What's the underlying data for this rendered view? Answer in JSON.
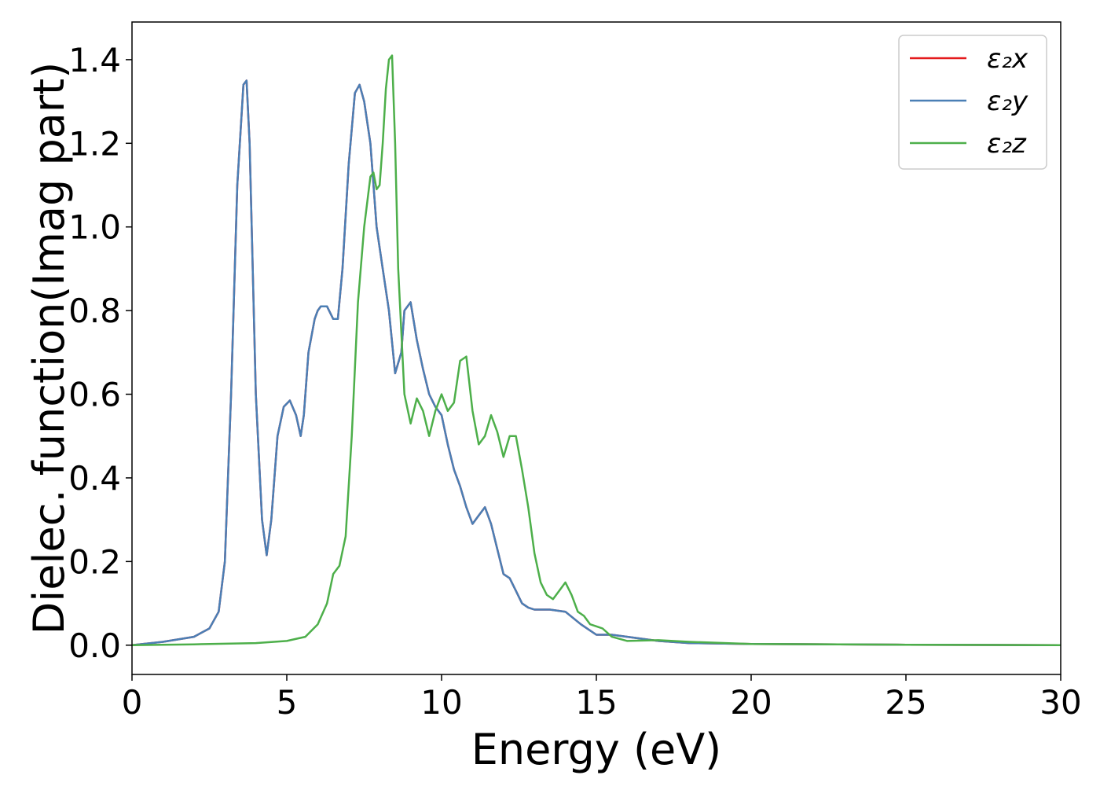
{
  "chart_data": {
    "type": "line",
    "xlabel": "Energy (eV)",
    "ylabel": "Dielec. function(Imag part)",
    "xlim": [
      0,
      30
    ],
    "ylim": [
      -0.07,
      1.49
    ],
    "xticks": [
      0,
      5,
      10,
      15,
      20,
      25,
      30
    ],
    "xtick_labels": [
      "0",
      "5",
      "10",
      "15",
      "20",
      "25",
      "30"
    ],
    "yticks": [
      0.0,
      0.2,
      0.4,
      0.6,
      0.8,
      1.0,
      1.2,
      1.4
    ],
    "ytick_labels": [
      "0.0",
      "0.2",
      "0.4",
      "0.6",
      "0.8",
      "1.0",
      "1.2",
      "1.4"
    ],
    "grid": false,
    "legend_position": "top-right",
    "series": [
      {
        "name": "ε₂x",
        "color": "#e41a1c",
        "x": [
          0,
          1,
          2,
          2.5,
          2.8,
          3.0,
          3.2,
          3.4,
          3.6,
          3.7,
          3.8,
          4.0,
          4.2,
          4.35,
          4.5,
          4.7,
          4.9,
          5.1,
          5.3,
          5.45,
          5.55,
          5.7,
          5.9,
          6.0,
          6.1,
          6.3,
          6.5,
          6.65,
          6.8,
          7.0,
          7.2,
          7.35,
          7.5,
          7.7,
          7.9,
          8.1,
          8.3,
          8.5,
          8.7,
          8.8,
          9.0,
          9.2,
          9.4,
          9.6,
          9.8,
          10.0,
          10.2,
          10.4,
          10.6,
          10.8,
          11.0,
          11.2,
          11.4,
          11.6,
          11.8,
          12.0,
          12.2,
          12.4,
          12.6,
          12.8,
          13.0,
          13.5,
          14.0,
          14.5,
          15.0,
          15.5,
          16.0,
          17.0,
          18.0,
          20.0,
          25.0,
          30.0
        ],
        "values": [
          0.0,
          0.008,
          0.02,
          0.04,
          0.08,
          0.2,
          0.6,
          1.1,
          1.34,
          1.35,
          1.2,
          0.6,
          0.3,
          0.215,
          0.3,
          0.5,
          0.57,
          0.585,
          0.55,
          0.5,
          0.55,
          0.7,
          0.78,
          0.8,
          0.81,
          0.81,
          0.78,
          0.78,
          0.9,
          1.15,
          1.32,
          1.34,
          1.3,
          1.2,
          1.0,
          0.9,
          0.8,
          0.65,
          0.7,
          0.8,
          0.82,
          0.73,
          0.66,
          0.6,
          0.57,
          0.55,
          0.48,
          0.42,
          0.38,
          0.33,
          0.29,
          0.31,
          0.33,
          0.29,
          0.23,
          0.17,
          0.16,
          0.13,
          0.1,
          0.09,
          0.085,
          0.085,
          0.08,
          0.05,
          0.025,
          0.025,
          0.02,
          0.01,
          0.005,
          0.003,
          0.001,
          0.0
        ]
      },
      {
        "name": "ε₂y",
        "color": "#4a7fb5",
        "x": [
          0,
          1,
          2,
          2.5,
          2.8,
          3.0,
          3.2,
          3.4,
          3.6,
          3.7,
          3.8,
          4.0,
          4.2,
          4.35,
          4.5,
          4.7,
          4.9,
          5.1,
          5.3,
          5.45,
          5.55,
          5.7,
          5.9,
          6.0,
          6.1,
          6.3,
          6.5,
          6.65,
          6.8,
          7.0,
          7.2,
          7.35,
          7.5,
          7.7,
          7.9,
          8.1,
          8.3,
          8.5,
          8.7,
          8.8,
          9.0,
          9.2,
          9.4,
          9.6,
          9.8,
          10.0,
          10.2,
          10.4,
          10.6,
          10.8,
          11.0,
          11.2,
          11.4,
          11.6,
          11.8,
          12.0,
          12.2,
          12.4,
          12.6,
          12.8,
          13.0,
          13.5,
          14.0,
          14.5,
          15.0,
          15.5,
          16.0,
          17.0,
          18.0,
          20.0,
          25.0,
          30.0
        ],
        "values": [
          0.0,
          0.008,
          0.02,
          0.04,
          0.08,
          0.2,
          0.6,
          1.1,
          1.34,
          1.35,
          1.2,
          0.6,
          0.3,
          0.215,
          0.3,
          0.5,
          0.57,
          0.585,
          0.55,
          0.5,
          0.55,
          0.7,
          0.78,
          0.8,
          0.81,
          0.81,
          0.78,
          0.78,
          0.9,
          1.15,
          1.32,
          1.34,
          1.3,
          1.2,
          1.0,
          0.9,
          0.8,
          0.65,
          0.7,
          0.8,
          0.82,
          0.73,
          0.66,
          0.6,
          0.57,
          0.55,
          0.48,
          0.42,
          0.38,
          0.33,
          0.29,
          0.31,
          0.33,
          0.29,
          0.23,
          0.17,
          0.16,
          0.13,
          0.1,
          0.09,
          0.085,
          0.085,
          0.08,
          0.05,
          0.025,
          0.025,
          0.02,
          0.01,
          0.005,
          0.003,
          0.001,
          0.0
        ]
      },
      {
        "name": "ε₂z",
        "color": "#4daf4a",
        "x": [
          0,
          2,
          4,
          5,
          5.6,
          6.0,
          6.3,
          6.5,
          6.7,
          6.9,
          7.1,
          7.3,
          7.5,
          7.7,
          7.8,
          7.9,
          8.0,
          8.1,
          8.2,
          8.3,
          8.4,
          8.5,
          8.6,
          8.8,
          9.0,
          9.2,
          9.4,
          9.6,
          9.8,
          10.0,
          10.2,
          10.4,
          10.6,
          10.8,
          11.0,
          11.2,
          11.4,
          11.6,
          11.8,
          12.0,
          12.2,
          12.4,
          12.6,
          12.8,
          13.0,
          13.2,
          13.4,
          13.6,
          13.8,
          14.0,
          14.2,
          14.4,
          14.6,
          14.8,
          15.0,
          15.2,
          15.5,
          16.0,
          17.0,
          18.0,
          20.0,
          25.0,
          30.0
        ],
        "values": [
          0.0,
          0.002,
          0.005,
          0.01,
          0.02,
          0.05,
          0.1,
          0.17,
          0.19,
          0.26,
          0.5,
          0.82,
          1.0,
          1.12,
          1.13,
          1.09,
          1.1,
          1.2,
          1.33,
          1.4,
          1.41,
          1.2,
          0.9,
          0.6,
          0.53,
          0.59,
          0.56,
          0.5,
          0.56,
          0.6,
          0.56,
          0.58,
          0.68,
          0.69,
          0.56,
          0.48,
          0.5,
          0.55,
          0.51,
          0.45,
          0.5,
          0.5,
          0.42,
          0.33,
          0.22,
          0.15,
          0.12,
          0.11,
          0.13,
          0.15,
          0.12,
          0.08,
          0.07,
          0.05,
          0.045,
          0.04,
          0.02,
          0.01,
          0.012,
          0.008,
          0.003,
          0.001,
          0.0
        ]
      }
    ]
  }
}
